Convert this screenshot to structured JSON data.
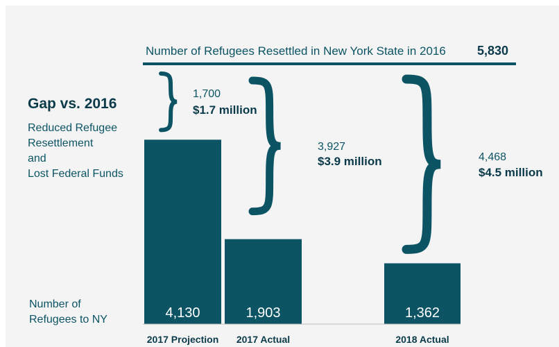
{
  "chart_data": {
    "type": "bar",
    "title": "Gap vs. 2016",
    "subtitle_lines": [
      "Reduced Refugee",
      "Resettlement",
      "and",
      "Lost Federal Funds"
    ],
    "y_caption_lines": [
      "Number of",
      "Refugees to NY"
    ],
    "reference": {
      "label": "Number of Refugees Resettled in New York State in 2016",
      "value": 5830,
      "value_label": "5,830"
    },
    "categories": [
      "2017 Projection",
      "2017 Actual",
      "2018 Actual"
    ],
    "values": [
      4130,
      1903,
      1362
    ],
    "value_labels": [
      "4,130",
      "1,903",
      "1,362"
    ],
    "gaps": [
      {
        "count": "1,700",
        "money": "$1.7 million"
      },
      {
        "count": "3,927",
        "money": "$3.9 million"
      },
      {
        "count": "4,468",
        "money": "$4.5 million"
      }
    ],
    "ylim": [
      0,
      5830
    ],
    "grid": false,
    "colors": {
      "bar": "#0c5464",
      "text": "#0c5464",
      "emphasis": "#0a3a4a",
      "bar_label": "#ffffff"
    }
  }
}
